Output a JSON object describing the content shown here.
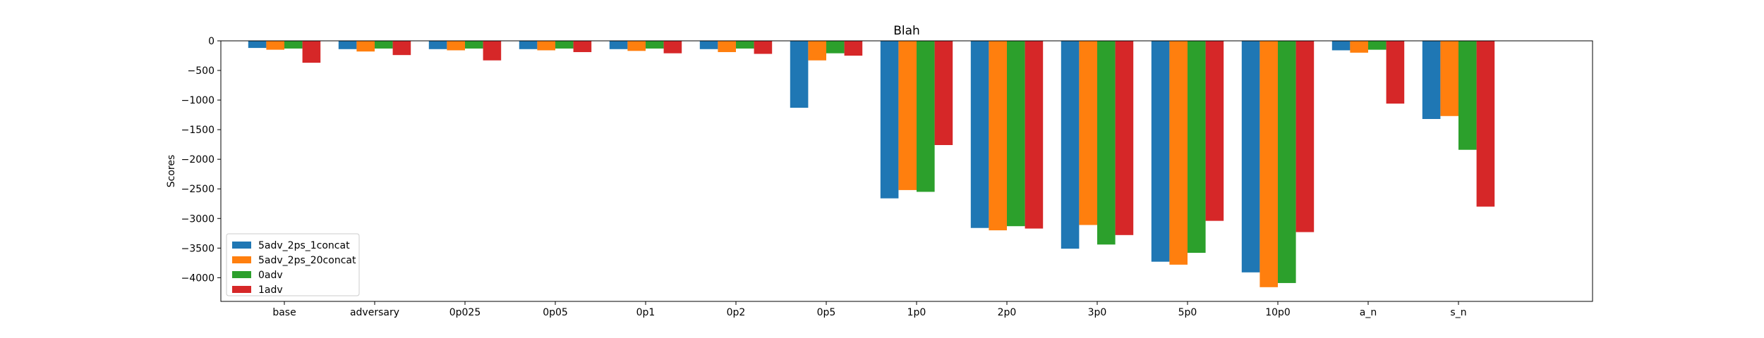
{
  "chart_data": {
    "type": "bar",
    "title": "Blah",
    "xlabel": "",
    "ylabel": "Scores",
    "ylim": [
      -4400,
      0
    ],
    "yticks": [
      0,
      -500,
      -1000,
      -1500,
      -2000,
      -2500,
      -3000,
      -3500,
      -4000
    ],
    "grid": false,
    "legend_position": "lower-left",
    "categories": [
      "base",
      "adversary",
      "0p025",
      "0p05",
      "0p1",
      "0p2",
      "0p5",
      "1p0",
      "2p0",
      "3p0",
      "5p0",
      "10p0",
      "a_n",
      "s_n"
    ],
    "series": [
      {
        "name": "5adv_2ps_1concat",
        "color": "#1f77b4",
        "values": [
          -120,
          -140,
          -140,
          -140,
          -140,
          -140,
          -1130,
          -2660,
          -3160,
          -3510,
          -3730,
          -3910,
          -160,
          -1320
        ]
      },
      {
        "name": "5adv_2ps_20concat",
        "color": "#ff7f0e",
        "values": [
          -150,
          -180,
          -160,
          -160,
          -170,
          -190,
          -330,
          -2520,
          -3200,
          -3110,
          -3780,
          -4160,
          -200,
          -1270
        ]
      },
      {
        "name": "0adv",
        "color": "#2ca02c",
        "values": [
          -130,
          -130,
          -130,
          -130,
          -130,
          -130,
          -210,
          -2550,
          -3130,
          -3440,
          -3580,
          -4090,
          -150,
          -1840
        ]
      },
      {
        "name": "1adv",
        "color": "#d62728",
        "values": [
          -370,
          -240,
          -330,
          -190,
          -210,
          -220,
          -250,
          -1760,
          -3170,
          -3280,
          -3040,
          -3230,
          -1060,
          -2800
        ]
      }
    ]
  }
}
